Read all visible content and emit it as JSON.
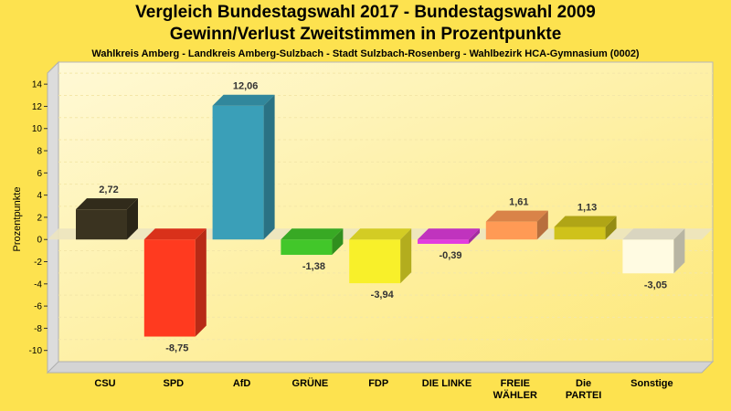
{
  "chart_data": {
    "type": "bar",
    "title": "Vergleich Bundestagswahl 2017 - Bundestagswahl 2009",
    "title_line2": "Gewinn/Verlust Zweitstimmen in Prozentpunkte",
    "subtitle": "Wahlkreis Amberg - Landkreis Amberg-Sulzbach - Stadt Sulzbach-Rosenberg - Wahlbezirk HCA-Gymnasium (0002)",
    "ylabel": "Prozentpunkte",
    "ylim": [
      -12,
      15
    ],
    "yticks": [
      14,
      12,
      10,
      8,
      6,
      4,
      2,
      0,
      -2,
      -4,
      -6,
      -8,
      -10
    ],
    "grid": true,
    "categories": [
      "CSU",
      "SPD",
      "AfD",
      "GRÜNE",
      "FDP",
      "DIE LINKE",
      "FREIE WÄHLER",
      "Die PARTEI",
      "Sonstige"
    ],
    "category_lines": [
      [
        "CSU"
      ],
      [
        "SPD"
      ],
      [
        "AfD"
      ],
      [
        "GRÜNE"
      ],
      [
        "FDP"
      ],
      [
        "DIE LINKE"
      ],
      [
        "FREIE",
        "WÄHLER"
      ],
      [
        "Die",
        "PARTEI"
      ],
      [
        "Sonstige"
      ]
    ],
    "values": [
      2.72,
      -8.75,
      12.06,
      -1.38,
      -3.94,
      -0.39,
      1.61,
      1.13,
      -3.05
    ],
    "value_labels": [
      "2,72",
      "-8,75",
      "12,06",
      "-1,38",
      "-3,94",
      "-0,39",
      "1,61",
      "1,13",
      "-3,05"
    ],
    "colors": [
      "#3a3320",
      "#ff3a1f",
      "#3a9fb8",
      "#42c72a",
      "#f8f02a",
      "#e23ce0",
      "#ff9a55",
      "#cfc21a",
      "#fffbe2"
    ]
  }
}
